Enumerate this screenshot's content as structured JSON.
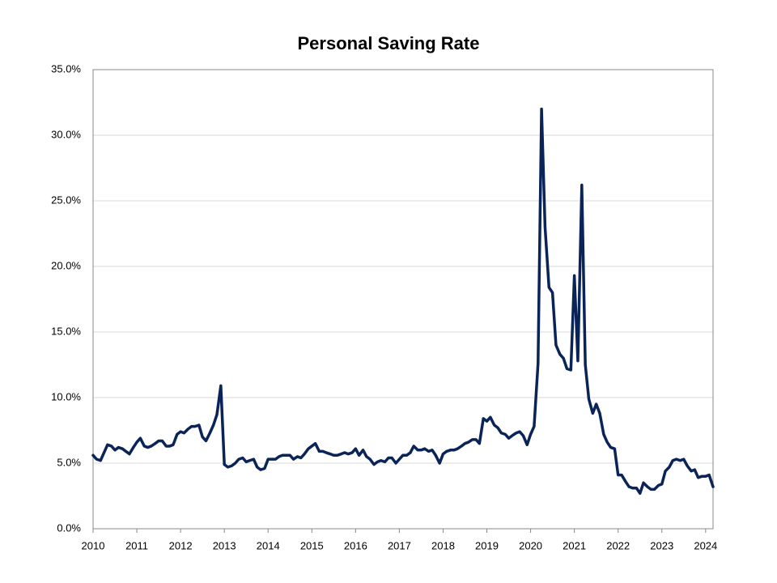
{
  "chart_data": {
    "type": "line",
    "title": "Personal Saving Rate",
    "x": [
      2010,
      2010.08,
      2010.17,
      2010.25,
      2010.33,
      2010.42,
      2010.5,
      2010.58,
      2010.67,
      2010.75,
      2010.83,
      2010.92,
      2011,
      2011.08,
      2011.17,
      2011.25,
      2011.33,
      2011.42,
      2011.5,
      2011.58,
      2011.67,
      2011.75,
      2011.83,
      2011.92,
      2012,
      2012.08,
      2012.17,
      2012.25,
      2012.33,
      2012.42,
      2012.5,
      2012.58,
      2012.67,
      2012.75,
      2012.83,
      2012.92,
      2013,
      2013.08,
      2013.17,
      2013.25,
      2013.33,
      2013.42,
      2013.5,
      2013.58,
      2013.67,
      2013.75,
      2013.83,
      2013.92,
      2014,
      2014.08,
      2014.17,
      2014.25,
      2014.33,
      2014.42,
      2014.5,
      2014.58,
      2014.67,
      2014.75,
      2014.83,
      2014.92,
      2015,
      2015.08,
      2015.17,
      2015.25,
      2015.33,
      2015.42,
      2015.5,
      2015.58,
      2015.67,
      2015.75,
      2015.83,
      2015.92,
      2016,
      2016.08,
      2016.17,
      2016.25,
      2016.33,
      2016.42,
      2016.5,
      2016.58,
      2016.67,
      2016.75,
      2016.83,
      2016.92,
      2017,
      2017.08,
      2017.17,
      2017.25,
      2017.33,
      2017.42,
      2017.5,
      2017.58,
      2017.67,
      2017.75,
      2017.83,
      2017.92,
      2018,
      2018.08,
      2018.17,
      2018.25,
      2018.33,
      2018.42,
      2018.5,
      2018.58,
      2018.67,
      2018.75,
      2018.83,
      2018.92,
      2019,
      2019.08,
      2019.17,
      2019.25,
      2019.33,
      2019.42,
      2019.5,
      2019.58,
      2019.67,
      2019.75,
      2019.83,
      2019.92,
      2020,
      2020.08,
      2020.17,
      2020.25,
      2020.33,
      2020.42,
      2020.5,
      2020.58,
      2020.67,
      2020.75,
      2020.83,
      2020.92,
      2021,
      2021.08,
      2021.17,
      2021.25,
      2021.33,
      2021.42,
      2021.5,
      2021.58,
      2021.67,
      2021.75,
      2021.83,
      2021.92,
      2022,
      2022.08,
      2022.17,
      2022.25,
      2022.33,
      2022.42,
      2022.5,
      2022.58,
      2022.67,
      2022.75,
      2022.83,
      2022.92,
      2023,
      2023.08,
      2023.17,
      2023.25,
      2023.33,
      2023.42,
      2023.5,
      2023.58,
      2023.67,
      2023.75,
      2023.83,
      2023.92,
      2024,
      2024.08,
      2024.17
    ],
    "values": [
      5.6,
      5.3,
      5.2,
      5.8,
      6.4,
      6.3,
      6.0,
      6.2,
      6.1,
      5.9,
      5.7,
      6.2,
      6.6,
      6.9,
      6.3,
      6.2,
      6.3,
      6.5,
      6.7,
      6.7,
      6.3,
      6.3,
      6.4,
      7.2,
      7.4,
      7.3,
      7.6,
      7.8,
      7.8,
      7.9,
      7.0,
      6.7,
      7.3,
      7.9,
      8.7,
      10.9,
      4.9,
      4.7,
      4.8,
      5.0,
      5.3,
      5.4,
      5.1,
      5.2,
      5.3,
      4.7,
      4.5,
      4.6,
      5.3,
      5.3,
      5.3,
      5.5,
      5.6,
      5.6,
      5.6,
      5.3,
      5.5,
      5.4,
      5.7,
      6.1,
      6.3,
      6.5,
      5.9,
      5.9,
      5.8,
      5.7,
      5.6,
      5.6,
      5.7,
      5.8,
      5.7,
      5.8,
      6.1,
      5.6,
      6.0,
      5.5,
      5.3,
      4.9,
      5.1,
      5.2,
      5.1,
      5.4,
      5.4,
      5.0,
      5.3,
      5.6,
      5.6,
      5.8,
      6.3,
      6.0,
      6.0,
      6.1,
      5.9,
      6.0,
      5.6,
      5.0,
      5.7,
      5.9,
      6.0,
      6.0,
      6.1,
      6.3,
      6.5,
      6.6,
      6.8,
      6.8,
      6.5,
      8.4,
      8.2,
      8.5,
      7.9,
      7.7,
      7.3,
      7.2,
      6.9,
      7.1,
      7.3,
      7.4,
      7.1,
      6.4,
      7.2,
      7.8,
      12.6,
      32.0,
      23.0,
      18.4,
      18.0,
      14.0,
      13.3,
      13.0,
      12.2,
      12.1,
      19.3,
      12.8,
      26.2,
      12.5,
      9.9,
      8.8,
      9.5,
      8.8,
      7.2,
      6.6,
      6.2,
      6.1,
      4.1,
      4.1,
      3.6,
      3.2,
      3.1,
      3.1,
      2.7,
      3.5,
      3.2,
      3.0,
      3.0,
      3.3,
      3.4,
      4.4,
      4.7,
      5.2,
      5.3,
      5.2,
      5.3,
      4.8,
      4.4,
      4.5,
      3.9,
      4.0,
      4.0,
      4.1,
      3.2
    ],
    "color": "#0b2458",
    "xlim": [
      2010,
      2024.17
    ],
    "xticks": [
      2010,
      2011,
      2012,
      2013,
      2014,
      2015,
      2016,
      2017,
      2018,
      2019,
      2020,
      2021,
      2022,
      2023,
      2024
    ],
    "ylim": [
      0,
      35
    ],
    "yticks": [
      {
        "value": 0,
        "label": "0.0%"
      },
      {
        "value": 5,
        "label": "5.0%"
      },
      {
        "value": 10,
        "label": "10.0%"
      },
      {
        "value": 15,
        "label": "15.0%"
      },
      {
        "value": 20,
        "label": "20.0%"
      },
      {
        "value": 25,
        "label": "25.0%"
      },
      {
        "value": 30,
        "label": "30.0%"
      },
      {
        "value": 35,
        "label": "35.0%"
      }
    ],
    "grid": true
  }
}
